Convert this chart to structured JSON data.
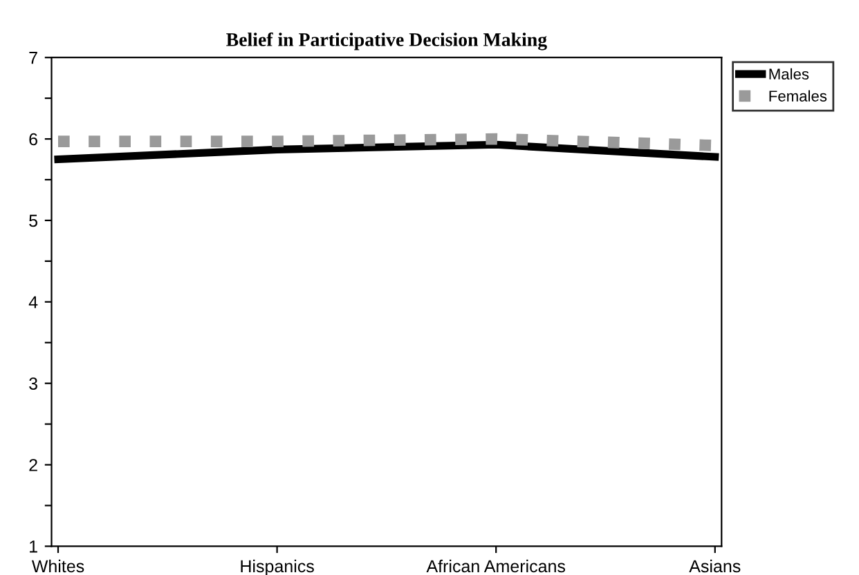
{
  "chart_data": {
    "type": "line",
    "title": "Belief in Participative Decision Making",
    "categories": [
      "Whites",
      "Hispanics",
      "African Americans",
      "Asians"
    ],
    "series": [
      {
        "name": "Males",
        "color": "#000000",
        "values": [
          5.75,
          5.87,
          5.93,
          5.78
        ],
        "line_style": "solid"
      },
      {
        "name": "Females",
        "color": "#9a9a9a",
        "values": [
          5.97,
          5.97,
          6.0,
          5.92
        ],
        "line_style": "dotted"
      }
    ],
    "ylim": [
      1,
      7
    ],
    "yticks": [
      1,
      {
        "value": 1.5,
        "label": null
      },
      2,
      {
        "value": 2.5,
        "label": null
      },
      3,
      {
        "value": 3.5,
        "label": null
      },
      4,
      {
        "value": 4.5,
        "label": null
      },
      5,
      {
        "value": 5.5,
        "label": null
      },
      6,
      {
        "value": 6.5,
        "label": null
      },
      7
    ],
    "grid": false,
    "legend": "right",
    "marker": "none"
  }
}
